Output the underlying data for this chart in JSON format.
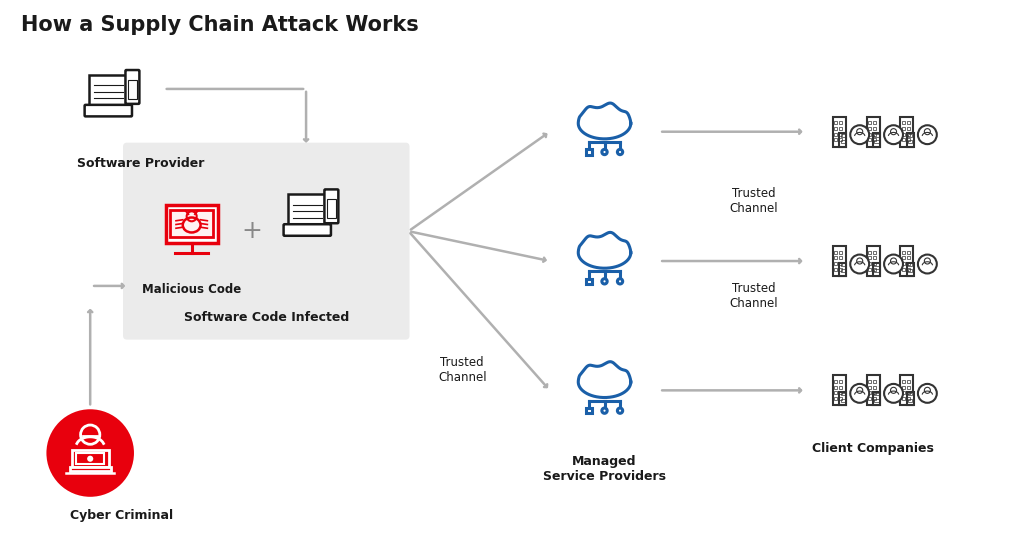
{
  "title": "How a Supply Chain Attack Works",
  "bg_color": "#ffffff",
  "title_color": "#1a1a1a",
  "title_fontsize": 15,
  "red_color": "#e8000d",
  "dark_color": "#1a1a1a",
  "blue_color": "#1a5fa8",
  "gray_arrow": "#b0b0b0",
  "gray_box_color": "#ebebeb",
  "labels": {
    "software_provider": "Software Provider",
    "malicious_code": "Malicious Code",
    "software_infected": "Software Code Infected",
    "cyber_criminal": "Cyber Criminal",
    "managed_service": "Managed\nService Providers",
    "client_companies": "Client Companies",
    "trusted_channel_left": "Trusted\nChannel",
    "trusted_channel_top": "Trusted\nChannel",
    "trusted_channel_bottom": "Trusted\nChannel"
  }
}
